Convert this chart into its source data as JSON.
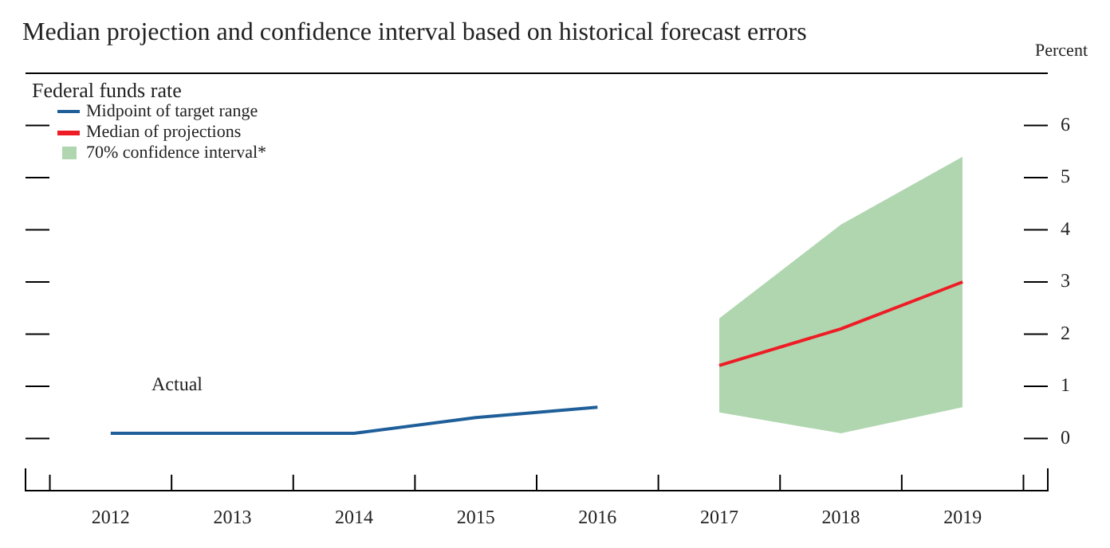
{
  "chart_data": {
    "type": "line",
    "title": "Median projection and confidence interval based on historical forecast errors",
    "subtitle": "Federal funds rate",
    "ylabel": "Percent",
    "xlim": [
      2011.3,
      2019.7
    ],
    "xticks": [
      {
        "value": 2011.5,
        "label": null
      },
      2012,
      {
        "value": 2012.5,
        "label": null
      },
      2013,
      {
        "value": 2013.5,
        "label": null
      },
      2014,
      {
        "value": 2014.5,
        "label": null
      },
      2015,
      {
        "value": 2015.5,
        "label": null
      },
      2016,
      {
        "value": 2016.5,
        "label": null
      },
      2017,
      {
        "value": 2017.5,
        "label": null
      },
      2018,
      {
        "value": 2018.5,
        "label": null
      },
      2019,
      {
        "value": 2019.5,
        "label": null
      }
    ],
    "ylim": [
      -1,
      7
    ],
    "yticks": [
      0,
      1,
      2,
      3,
      4,
      5,
      6
    ],
    "series": [
      {
        "name": "Midpoint of target range",
        "color": "#1f5f99",
        "x": [
          2012,
          2013,
          2014,
          2015,
          2016
        ],
        "values": [
          0.1,
          0.1,
          0.1,
          0.4,
          0.6
        ]
      },
      {
        "name": "Median of projections",
        "color": "#ee1c25",
        "x": [
          2017,
          2018,
          2019
        ],
        "values": [
          1.4,
          2.1,
          3.0
        ]
      },
      {
        "name": "70% confidence interval*",
        "color": "#b0d6b0",
        "x": [
          2017,
          2018,
          2019
        ],
        "values": [
          null,
          null,
          null
        ],
        "lower": [
          0.5,
          0.1,
          0.6
        ],
        "upper": [
          2.3,
          4.1,
          5.4
        ]
      }
    ],
    "annotations": [
      "Actual"
    ],
    "legend": "top left",
    "grid": false,
    "marker": "none",
    "line_style": "solid"
  }
}
